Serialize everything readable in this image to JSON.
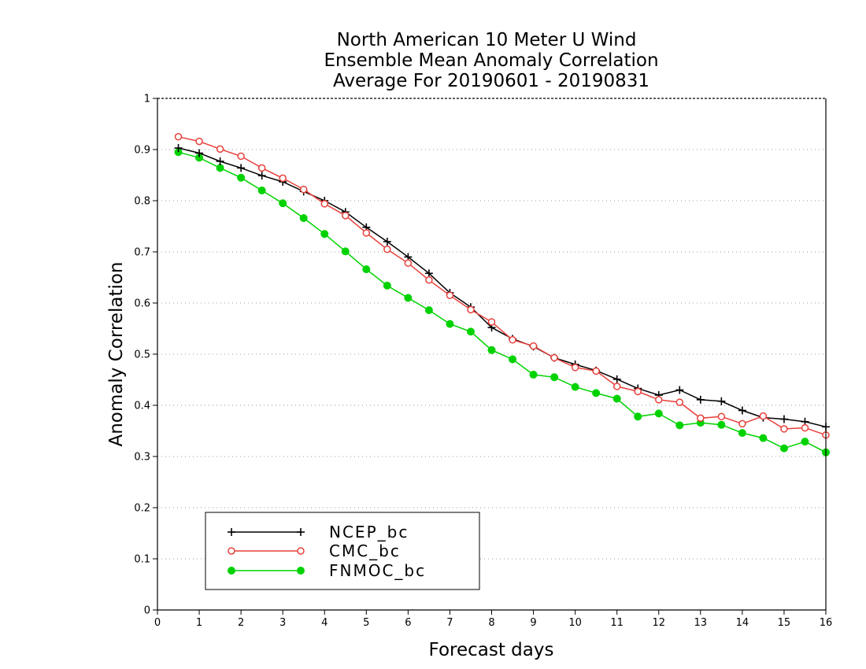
{
  "chart_data": {
    "type": "line",
    "title": [
      "North American 10 Meter U Wind",
      "Ensemble Mean Anomaly Correlation",
      "Average For 20190601 - 20190831"
    ],
    "xlabel": "Forecast days",
    "ylabel": "Anomaly Correlation",
    "xlim": [
      0,
      16
    ],
    "ylim": [
      0,
      1
    ],
    "xticks": [
      "0",
      "1",
      "2",
      "3",
      "4",
      "5",
      "6",
      "7",
      "8",
      "9",
      "10",
      "11",
      "12",
      "13",
      "14",
      "15",
      "16"
    ],
    "yticks": [
      "0",
      "0.1",
      "0.2",
      "0.3",
      "0.4",
      "0.5",
      "0.6",
      "0.7",
      "0.8",
      "0.9",
      "1"
    ],
    "grid": "horizontal dotted",
    "legend_position": "bottom-left",
    "x": [
      0.5,
      1,
      1.5,
      2,
      2.5,
      3,
      3.5,
      4,
      4.5,
      5,
      5.5,
      6,
      6.5,
      7,
      7.5,
      8,
      8.5,
      9,
      9.5,
      10,
      10.5,
      11,
      11.5,
      12,
      12.5,
      13,
      13.5,
      14,
      14.5,
      15,
      15.5,
      16
    ],
    "series": [
      {
        "name": "NCEP_bc",
        "color": "#000000",
        "marker": "plus",
        "values": [
          0.903,
          0.893,
          0.877,
          0.864,
          0.849,
          0.837,
          0.818,
          0.8,
          0.778,
          0.748,
          0.72,
          0.69,
          0.658,
          0.62,
          0.592,
          0.552,
          0.53,
          0.515,
          0.493,
          0.48,
          0.468,
          0.451,
          0.433,
          0.42,
          0.43,
          0.411,
          0.408,
          0.39,
          0.376,
          0.373,
          0.368,
          0.358
        ]
      },
      {
        "name": "CMC_bc",
        "color": "#e8403c",
        "marker": "open-circle",
        "values": [
          0.925,
          0.916,
          0.901,
          0.887,
          0.864,
          0.844,
          0.822,
          0.794,
          0.771,
          0.737,
          0.705,
          0.678,
          0.645,
          0.615,
          0.587,
          0.563,
          0.528,
          0.516,
          0.493,
          0.474,
          0.467,
          0.437,
          0.427,
          0.411,
          0.406,
          0.375,
          0.378,
          0.364,
          0.379,
          0.354,
          0.356,
          0.342
        ]
      },
      {
        "name": "FNMOC_bc",
        "color": "#00d200",
        "marker": "filled-circle",
        "values": [
          0.895,
          0.884,
          0.864,
          0.845,
          0.82,
          0.795,
          0.766,
          0.735,
          0.701,
          0.666,
          0.634,
          0.61,
          0.586,
          0.559,
          0.544,
          0.508,
          0.49,
          0.46,
          0.455,
          0.436,
          0.424,
          0.413,
          0.378,
          0.384,
          0.361,
          0.366,
          0.362,
          0.346,
          0.336,
          0.316,
          0.329,
          0.308
        ]
      }
    ]
  }
}
